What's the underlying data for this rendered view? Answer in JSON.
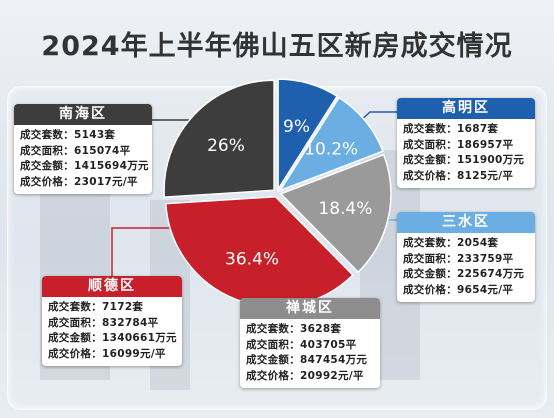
{
  "title": "2024年上半年佛山五区新房成交情况",
  "colors": {
    "nanhai": "#3d3d3d",
    "gaoming": "#1e5fae",
    "sanshui": "#6aaee3",
    "chancheng": "#9a9a9a",
    "shunde": "#c8202a"
  },
  "districts": [
    {
      "key": "nanhai",
      "name": "南海区",
      "units": "成交套数：5143套",
      "area": "成交面积：615074平",
      "amount": "成交金额：1415694万元",
      "price": "成交价格：23017元/平",
      "percent_label": "26%"
    },
    {
      "key": "gaoming",
      "name": "高明区",
      "units": "成交套数：1687套",
      "area": "成交面积：186957平",
      "amount": "成交金额：151900万元",
      "price": "成交价格：8125元/平",
      "percent_label": "9%"
    },
    {
      "key": "sanshui",
      "name": "三水区",
      "units": "成交套数：2054套",
      "area": "成交面积：233759平",
      "amount": "成交金额：225674万元",
      "price": "成交价格：9654元/平",
      "percent_label": "10.2%"
    },
    {
      "key": "chancheng",
      "name": "禅城区",
      "units": "成交套数：3628套",
      "area": "成交面积：403705平",
      "amount": "成交金额：847454万元",
      "price": "成交价格：20992元/平",
      "percent_label": "18.4%"
    },
    {
      "key": "shunde",
      "name": "顺德区",
      "units": "成交套数：7172套",
      "area": "成交面积：832784平",
      "amount": "成交金额：1340661万元",
      "price": "成交价格：16099元/平",
      "percent_label": "36.4%"
    }
  ],
  "chart_data": {
    "type": "pie",
    "title": "2024年上半年佛山五区新房成交情况",
    "slices": [
      {
        "label": "高明区",
        "value": 9,
        "color": "#1e5fae"
      },
      {
        "label": "三水区",
        "value": 10.2,
        "color": "#6aaee3"
      },
      {
        "label": "禅城区",
        "value": 18.4,
        "color": "#9a9a9a"
      },
      {
        "label": "顺德区",
        "value": 36.4,
        "color": "#c8202a"
      },
      {
        "label": "南海区",
        "value": 26,
        "color": "#3d3d3d"
      }
    ]
  }
}
